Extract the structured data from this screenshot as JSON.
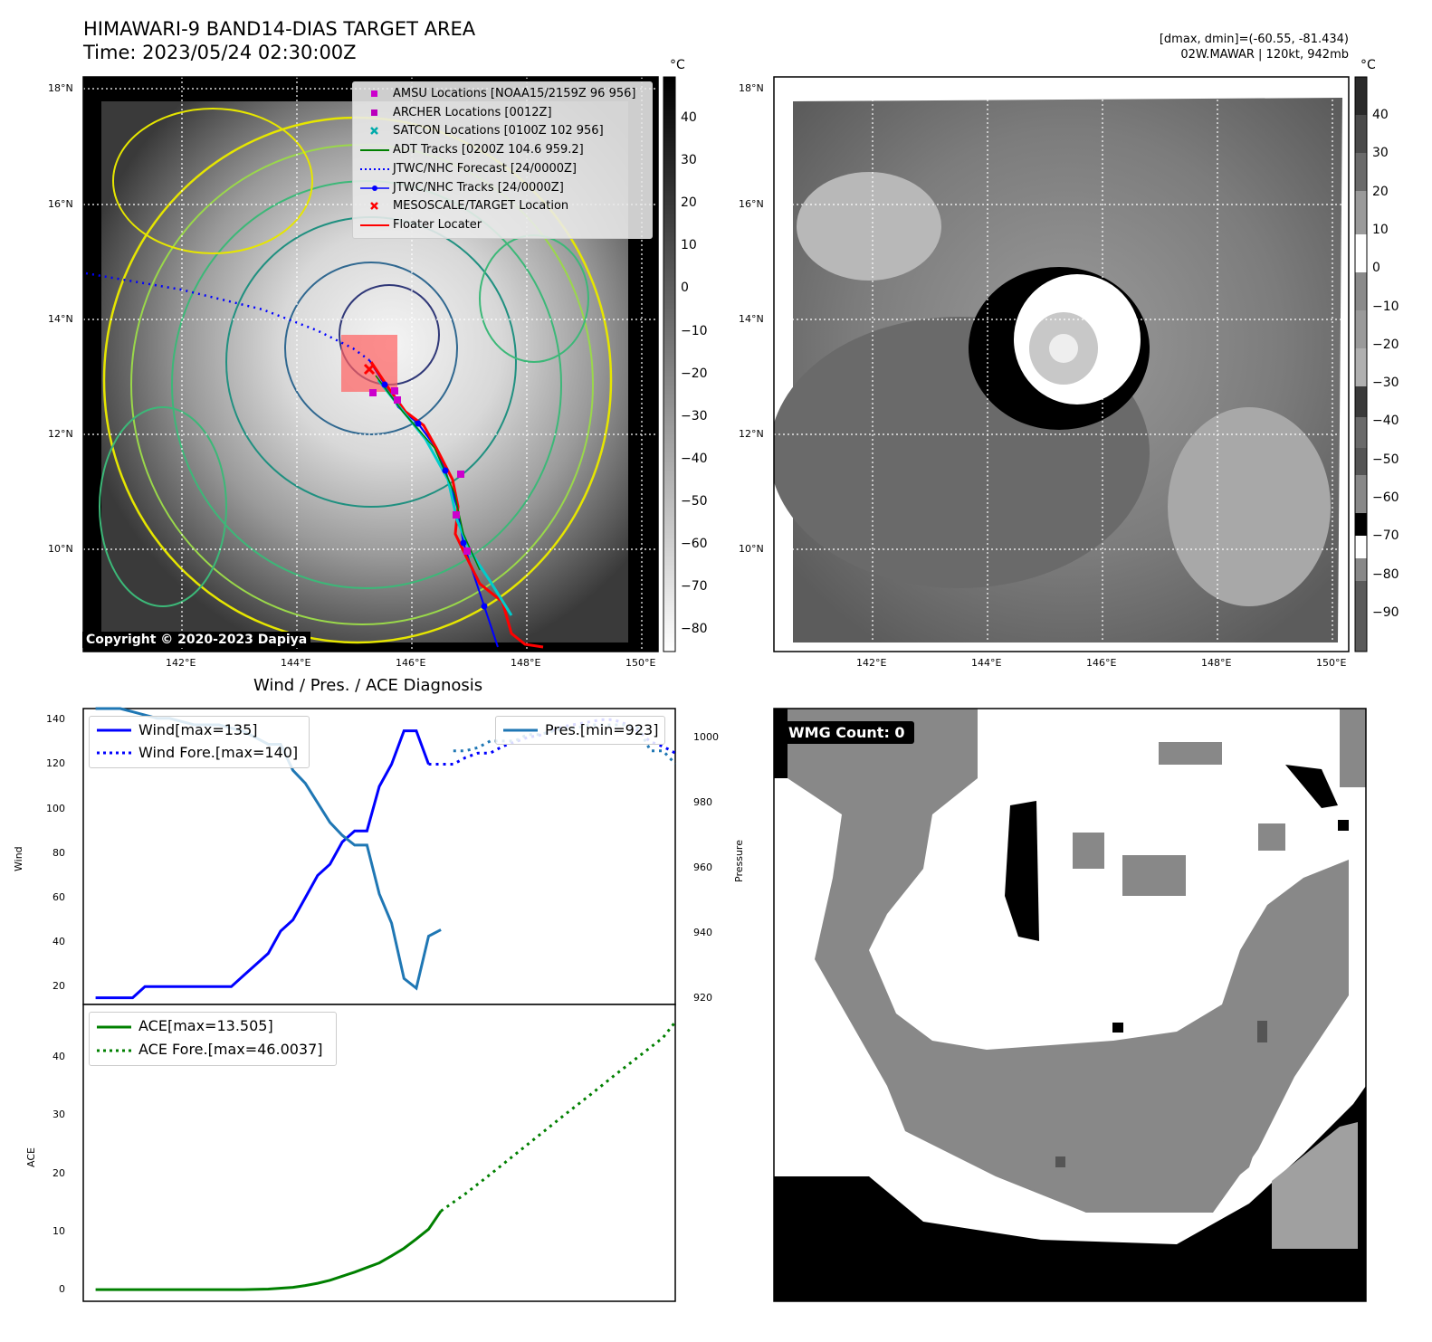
{
  "header": {
    "title_line1": "HIMAWARI-9 BAND14-DIAS TARGET AREA",
    "title_line2": "Time: 2023/05/24 02:30:00Z",
    "stats_line1": "[dmax, dmin]=(-60.55, -81.434)",
    "stats_line2": "02W.MAWAR | 120kt, 942mb",
    "copyright": "Copyright © 2020-2023 Dapiya"
  },
  "map": {
    "lat_ticks": [
      "18°N",
      "16°N",
      "14°N",
      "12°N",
      "10°N"
    ],
    "lon_ticks": [
      "142°E",
      "144°E",
      "146°E",
      "148°E",
      "150°E"
    ],
    "colorbar_unit": "°C",
    "colorbar_left_ticks": [
      "40",
      "30",
      "20",
      "10",
      "0",
      "−10",
      "−20",
      "−30",
      "−40",
      "−50",
      "−60",
      "−70",
      "−80"
    ],
    "colorbar_right_ticks": [
      "40",
      "30",
      "20",
      "10",
      "0",
      "−10",
      "−20",
      "−30",
      "−40",
      "−50",
      "−60",
      "−70",
      "−80",
      "−90"
    ],
    "legend": [
      {
        "label": "AMSU Locations [NOAA15/2159Z 96 956]",
        "color": "#cc00cc",
        "marker": "square"
      },
      {
        "label": "ARCHER Locations [0012Z]",
        "color": "#bb00bb",
        "marker": "square"
      },
      {
        "label": "SATCON Locations [0100Z 102 956]",
        "color": "#00aaaa",
        "marker": "x"
      },
      {
        "label": "ADT Tracks [0200Z 104.6 959.2]",
        "color": "#008000",
        "marker": "line"
      },
      {
        "label": "JTWC/NHC Forecast [24/0000Z]",
        "color": "#0000ff",
        "marker": "dotted"
      },
      {
        "label": "JTWC/NHC Tracks [24/0000Z]",
        "color": "#0000ff",
        "marker": "line-dot"
      },
      {
        "label": "MESOSCALE/TARGET Location",
        "color": "#ff0000",
        "marker": "x"
      },
      {
        "label": "Floater Locater",
        "color": "#ff0000",
        "marker": "line"
      }
    ],
    "colors": {
      "track_blue": "#0000ff",
      "track_red": "#ff0000",
      "adt_green": "#008000",
      "satcon_cyan": "#00cccc",
      "amsu_magenta": "#cc00cc"
    }
  },
  "diagnosis": {
    "title": "Wind / Pres. / ACE Diagnosis",
    "wind_ylabel": "Wind",
    "pres_ylabel": "Pressure",
    "ace_ylabel": "ACE",
    "wind_yticks": [
      "140",
      "120",
      "100",
      "80",
      "60",
      "40",
      "20"
    ],
    "pres_yticks": [
      "1000",
      "980",
      "960",
      "940",
      "920"
    ],
    "ace_yticks": [
      "40",
      "30",
      "20",
      "10",
      "0"
    ],
    "legend_wind": [
      "Wind[max=135]",
      "Wind Fore.[max=140]"
    ],
    "legend_pres": [
      "Pres.[min=923]"
    ],
    "legend_ace": [
      "ACE[max=13.505]",
      "ACE Fore.[max=46.0037]"
    ]
  },
  "chart_data": [
    {
      "type": "line",
      "title": "Wind / Pres. / ACE Diagnosis",
      "ylabel": "Wind",
      "ylim": [
        12,
        145
      ],
      "series": [
        {
          "name": "Wind[max=135]",
          "x": [
            0,
            1,
            2,
            3,
            4,
            5,
            6,
            7,
            8,
            9,
            10,
            11,
            12,
            13,
            14,
            15,
            16,
            17,
            18,
            19,
            20,
            21,
            22,
            23,
            24,
            25,
            26,
            27
          ],
          "values": [
            15,
            15,
            15,
            15,
            20,
            20,
            20,
            20,
            20,
            20,
            20,
            20,
            25,
            30,
            35,
            45,
            50,
            60,
            70,
            75,
            85,
            90,
            90,
            110,
            120,
            135,
            135,
            120
          ]
        },
        {
          "name": "Wind Fore.[max=140]",
          "x": [
            27,
            28,
            29,
            30,
            31,
            32,
            33,
            34,
            35,
            36,
            37,
            38,
            39,
            40,
            41,
            42,
            43,
            44,
            45,
            46,
            47
          ],
          "values": [
            120,
            120,
            120,
            123,
            125,
            125,
            128,
            130,
            132,
            133,
            135,
            137,
            138,
            139,
            140,
            140,
            138,
            135,
            130,
            128,
            125
          ]
        }
      ],
      "xlim": [
        -1,
        47
      ]
    },
    {
      "type": "line",
      "ylabel": "Pressure",
      "ylim": [
        918,
        1009
      ],
      "series": [
        {
          "name": "Pres.[min=923]",
          "x": [
            0,
            1,
            2,
            3,
            4,
            5,
            6,
            7,
            8,
            9,
            10,
            11,
            12,
            13,
            14,
            15,
            16,
            17,
            18,
            19,
            20,
            21,
            22,
            23,
            24,
            25,
            26,
            27,
            28
          ],
          "values": [
            1009,
            1009,
            1009,
            1008,
            1007,
            1006,
            1006,
            1005,
            1004,
            1004,
            1004,
            1003,
            1002,
            1000,
            998,
            998,
            990,
            986,
            980,
            974,
            970,
            967,
            967,
            952,
            943,
            926,
            923,
            939,
            941
          ]
        },
        {
          "name": "Pres.[min=923] forecast",
          "x": [
            29,
            30,
            31,
            32,
            33,
            34,
            35,
            36,
            37,
            38,
            39,
            40,
            41,
            42,
            43,
            44,
            45,
            46,
            47
          ],
          "values": [
            996,
            996,
            997,
            999,
            999,
            999,
            1001,
            1001,
            1002,
            1003,
            1003,
            1004,
            1004,
            1004,
            1004,
            1003,
            996,
            996,
            992
          ]
        }
      ],
      "xlim": [
        -1,
        47
      ]
    },
    {
      "type": "line",
      "ylabel": "ACE",
      "ylim": [
        -2,
        49
      ],
      "series": [
        {
          "name": "ACE[max=13.505]",
          "x": [
            0,
            2,
            4,
            6,
            8,
            10,
            12,
            14,
            16,
            17,
            18,
            19,
            20,
            21,
            22,
            23,
            24,
            25,
            26,
            27,
            28
          ],
          "values": [
            0,
            0,
            0,
            0,
            0,
            0,
            0,
            0.1,
            0.4,
            0.7,
            1.1,
            1.6,
            2.3,
            3.0,
            3.8,
            4.6,
            5.8,
            7.1,
            8.7,
            10.4,
            13.5
          ]
        },
        {
          "name": "ACE Fore.[max=46.0037]",
          "x": [
            28,
            30,
            32,
            34,
            36,
            38,
            40,
            42,
            44,
            46,
            47
          ],
          "values": [
            13.5,
            16.5,
            19.8,
            23.2,
            26.6,
            30.0,
            33.3,
            36.7,
            40.0,
            43.3,
            46.0
          ]
        }
      ],
      "xlim": [
        -1,
        47
      ]
    }
  ],
  "wmg": {
    "badge": "WMG Count: 0"
  }
}
